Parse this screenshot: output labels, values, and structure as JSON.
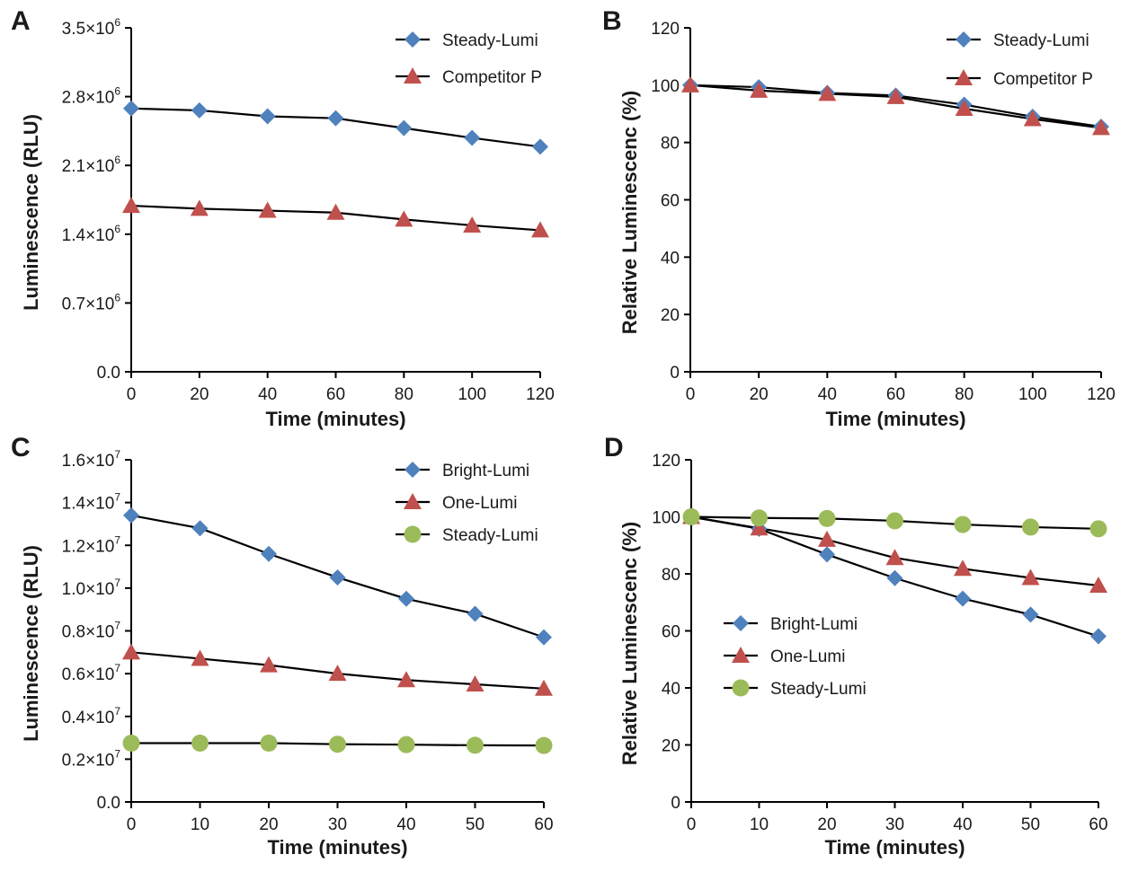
{
  "colors": {
    "blue": "#4f81bd",
    "red": "#c0504d",
    "green": "#9bbb59",
    "line": "#000000"
  },
  "chart_data": [
    {
      "panel": "A",
      "type": "line",
      "xlabel": "Time (minutes)",
      "ylabel": "Luminescence (RLU)",
      "x": [
        0,
        20,
        40,
        60,
        80,
        100,
        120
      ],
      "xlim": [
        0,
        120
      ],
      "ylim": [
        0,
        3500000
      ],
      "xticks": [
        "0",
        "20",
        "40",
        "60",
        "80",
        "100",
        "120"
      ],
      "yticks": [
        {
          "value": 0,
          "label": "0.0"
        },
        {
          "value": 700000,
          "label": "0.7×10",
          "sup": "6"
        },
        {
          "value": 1400000,
          "label": "1.4×10",
          "sup": "6"
        },
        {
          "value": 2100000,
          "label": "2.1×10",
          "sup": "6"
        },
        {
          "value": 2800000,
          "label": "2.8×10",
          "sup": "6"
        },
        {
          "value": 3500000,
          "label": "3.5×10",
          "sup": "6"
        }
      ],
      "grid": false,
      "legend_position": "top-right",
      "series": [
        {
          "name": "Steady-Lumi",
          "marker": "diamond",
          "color": "#4f81bd",
          "values": [
            2680000,
            2660000,
            2600000,
            2580000,
            2480000,
            2380000,
            2290000
          ]
        },
        {
          "name": "Competitor P",
          "marker": "triangle",
          "color": "#c0504d",
          "values": [
            1690000,
            1660000,
            1640000,
            1620000,
            1550000,
            1490000,
            1440000
          ]
        }
      ]
    },
    {
      "panel": "B",
      "type": "line",
      "xlabel": "Time (minutes)",
      "ylabel": "Relative Luminescenc (%)",
      "x": [
        0,
        20,
        40,
        60,
        80,
        100,
        120
      ],
      "xlim": [
        0,
        120
      ],
      "ylim": [
        0,
        120
      ],
      "xticks": [
        "0",
        "20",
        "40",
        "60",
        "80",
        "100",
        "120"
      ],
      "yticks": [
        {
          "value": 0,
          "label": "0"
        },
        {
          "value": 20,
          "label": "20"
        },
        {
          "value": 40,
          "label": "40"
        },
        {
          "value": 60,
          "label": "60"
        },
        {
          "value": 80,
          "label": "80"
        },
        {
          "value": 100,
          "label": "100"
        },
        {
          "value": 120,
          "label": "120"
        }
      ],
      "grid": false,
      "legend_position": "top-right",
      "series": [
        {
          "name": "Steady-Lumi",
          "marker": "diamond",
          "color": "#4f81bd",
          "values": [
            100,
            99.3,
            97.3,
            96.4,
            93.2,
            89,
            85.5
          ]
        },
        {
          "name": "Competitor P",
          "marker": "triangle",
          "color": "#c0504d",
          "values": [
            100,
            98.1,
            97,
            95.9,
            91.8,
            88.2,
            85.1
          ]
        }
      ]
    },
    {
      "panel": "C",
      "type": "line",
      "xlabel": "Time (minutes)",
      "ylabel": "Luminescence (RLU)",
      "x": [
        0,
        10,
        20,
        30,
        40,
        50,
        60
      ],
      "xlim": [
        0,
        60
      ],
      "ylim": [
        0,
        16000000
      ],
      "xticks": [
        "0",
        "10",
        "20",
        "30",
        "40",
        "50",
        "60"
      ],
      "yticks": [
        {
          "value": 0,
          "label": "0.0"
        },
        {
          "value": 2000000,
          "label": "0.2×10",
          "sup": "7"
        },
        {
          "value": 4000000,
          "label": "0.4×10",
          "sup": "7"
        },
        {
          "value": 6000000,
          "label": "0.6×10",
          "sup": "7"
        },
        {
          "value": 8000000,
          "label": "0.8×10",
          "sup": "7"
        },
        {
          "value": 10000000,
          "label": "1.0×10",
          "sup": "7"
        },
        {
          "value": 12000000,
          "label": "1.2×10",
          "sup": "7"
        },
        {
          "value": 14000000,
          "label": "1.4×10",
          "sup": "7"
        },
        {
          "value": 16000000,
          "label": "1.6×10",
          "sup": "7"
        }
      ],
      "grid": false,
      "legend_position": "top-right",
      "series": [
        {
          "name": "Bright-Lumi",
          "marker": "diamond",
          "color": "#4f81bd",
          "values": [
            13400000,
            12800000,
            11600000,
            10500000,
            9500000,
            8800000,
            7700000
          ]
        },
        {
          "name": "One-Lumi",
          "marker": "triangle",
          "color": "#c0504d",
          "values": [
            7000000,
            6700000,
            6400000,
            6000000,
            5700000,
            5500000,
            5300000
          ]
        },
        {
          "name": "Steady-Lumi",
          "marker": "circle",
          "color": "#9bbb59",
          "values": [
            2750000,
            2750000,
            2750000,
            2700000,
            2680000,
            2650000,
            2640000
          ]
        }
      ]
    },
    {
      "panel": "D",
      "type": "line",
      "xlabel": "Time (minutes)",
      "ylabel": "Relative Luminescenc (%)",
      "x": [
        0,
        10,
        20,
        30,
        40,
        50,
        60
      ],
      "xlim": [
        0,
        60
      ],
      "ylim": [
        0,
        120
      ],
      "xticks": [
        "0",
        "10",
        "20",
        "30",
        "40",
        "50",
        "60"
      ],
      "yticks": [
        {
          "value": 0,
          "label": "0"
        },
        {
          "value": 20,
          "label": "20"
        },
        {
          "value": 40,
          "label": "40"
        },
        {
          "value": 60,
          "label": "60"
        },
        {
          "value": 80,
          "label": "80"
        },
        {
          "value": 100,
          "label": "100"
        },
        {
          "value": 120,
          "label": "120"
        }
      ],
      "grid": false,
      "legend_position": "bottom-left",
      "series": [
        {
          "name": "Bright-Lumi",
          "marker": "diamond",
          "color": "#4f81bd",
          "values": [
            100,
            95.8,
            86.8,
            78.5,
            71.3,
            65.7,
            58.1
          ]
        },
        {
          "name": "One-Lumi",
          "marker": "triangle",
          "color": "#c0504d",
          "values": [
            100,
            96,
            92,
            85.6,
            81.8,
            78.6,
            75.9
          ]
        },
        {
          "name": "Steady-Lumi",
          "marker": "circle",
          "color": "#9bbb59",
          "values": [
            100,
            99.6,
            99.4,
            98.6,
            97.3,
            96.4,
            95.8
          ]
        }
      ]
    }
  ]
}
